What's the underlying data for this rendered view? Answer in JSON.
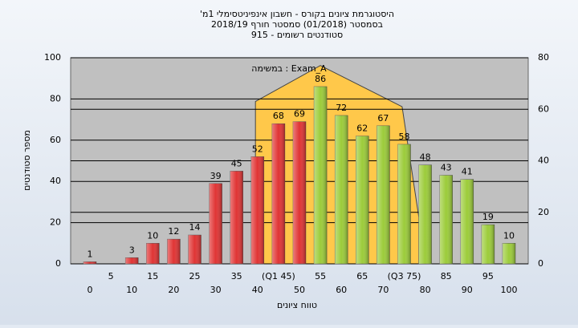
{
  "chart_data": {
    "type": "bar",
    "title": "היסטוגרמת ציונים בקורס - חשבון אינפיניטסימלי 1מ'",
    "subtitle": "בסמסטר  (01/2018)  סמסטר חורף 2018/19",
    "subtitle2": "סטודנטים רשומים - 915",
    "ylabel": "מספר סטודנטים",
    "xlabel": "טווח ציונים",
    "annotation": "Exam_A : במשימה",
    "categories": [
      "0",
      "5",
      "10",
      "15",
      "20",
      "25",
      "30",
      "35",
      "40",
      "(Q1 45)",
      "50",
      "55",
      "60",
      "65",
      "70",
      "(Q3 75)",
      "80",
      "85",
      "90",
      "95",
      "100"
    ],
    "values": [
      1,
      null,
      3,
      10,
      12,
      14,
      39,
      45,
      52,
      68,
      69,
      86,
      72,
      62,
      67,
      58,
      48,
      43,
      41,
      19,
      10
    ],
    "colors": [
      "#e03434",
      "#e03434",
      "#e03434",
      "#e03434",
      "#e03434",
      "#e03434",
      "#e03434",
      "#e03434",
      "#e03434",
      "#e03434",
      "#e03434",
      "#9ccc3a",
      "#9ccc3a",
      "#9ccc3a",
      "#9ccc3a",
      "#9ccc3a",
      "#9ccc3a",
      "#9ccc3a",
      "#9ccc3a",
      "#9ccc3a",
      "#9ccc3a"
    ],
    "ylim": [
      0,
      100
    ],
    "yticks": [
      0,
      20,
      40,
      60,
      80,
      100
    ],
    "y2lim": [
      0,
      80
    ],
    "y2ticks": [
      0,
      20,
      40,
      60,
      80
    ],
    "area": {
      "axis": "y2",
      "color": "#ffc84a",
      "x": [
        39.5,
        55,
        74.5,
        78.5
      ],
      "values": [
        63,
        77,
        61,
        18
      ]
    },
    "grid": true
  }
}
